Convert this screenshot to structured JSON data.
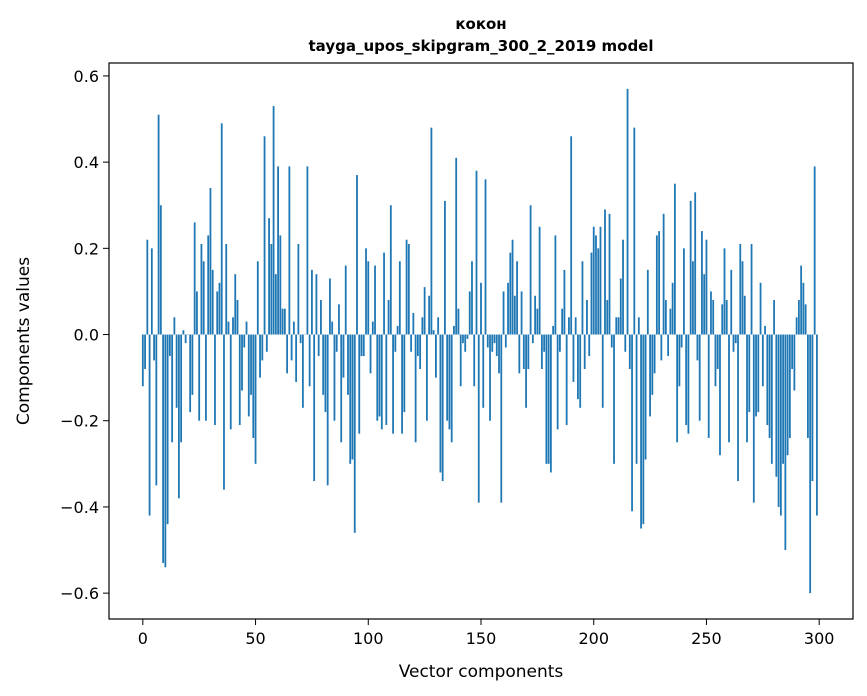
{
  "chart_data": {
    "type": "bar",
    "title_line1": "кокон",
    "title_line2": "tayga_upos_skipgram_300_2_2019 model",
    "xlabel": "Vector components",
    "ylabel": "Components values",
    "xlim": [
      -15,
      315
    ],
    "ylim": [
      -0.66,
      0.63
    ],
    "xticks": [
      0,
      50,
      100,
      150,
      200,
      250,
      300
    ],
    "xtick_labels": [
      "0",
      "50",
      "100",
      "150",
      "200",
      "250",
      "300"
    ],
    "yticks": [
      -0.6,
      -0.4,
      -0.2,
      0.0,
      0.2,
      0.4,
      0.6
    ],
    "ytick_labels": [
      "−0.6",
      "−0.4",
      "−0.2",
      "0.0",
      "0.2",
      "0.4",
      "0.6"
    ],
    "bar_color": "#1f77b4",
    "grid": false,
    "values": [
      -0.12,
      -0.08,
      0.22,
      -0.42,
      0.2,
      -0.06,
      -0.35,
      0.51,
      0.3,
      -0.53,
      -0.54,
      -0.44,
      -0.05,
      -0.25,
      0.04,
      -0.17,
      -0.38,
      -0.25,
      0.01,
      -0.02,
      0.0,
      -0.18,
      -0.14,
      0.26,
      0.1,
      -0.2,
      0.21,
      0.17,
      -0.2,
      0.23,
      0.34,
      0.15,
      -0.21,
      0.1,
      0.12,
      0.49,
      -0.36,
      0.21,
      0.03,
      -0.22,
      0.04,
      0.14,
      0.08,
      -0.21,
      -0.13,
      -0.03,
      0.03,
      -0.19,
      -0.14,
      -0.24,
      -0.3,
      0.17,
      -0.1,
      -0.06,
      0.46,
      -0.04,
      0.27,
      0.21,
      0.53,
      0.14,
      0.39,
      0.23,
      0.06,
      0.06,
      -0.09,
      0.39,
      -0.06,
      0.03,
      -0.11,
      0.21,
      -0.02,
      -0.17,
      0.0,
      0.39,
      -0.12,
      0.15,
      -0.34,
      0.14,
      -0.05,
      0.08,
      -0.14,
      -0.18,
      -0.35,
      0.13,
      0.03,
      -0.2,
      -0.04,
      0.07,
      -0.25,
      -0.1,
      0.16,
      -0.14,
      -0.3,
      -0.29,
      -0.46,
      0.37,
      -0.23,
      -0.05,
      -0.05,
      0.2,
      0.17,
      -0.09,
      0.03,
      0.16,
      -0.2,
      -0.19,
      -0.22,
      0.19,
      -0.21,
      0.08,
      0.3,
      -0.23,
      -0.04,
      0.02,
      0.17,
      -0.23,
      -0.18,
      0.22,
      0.21,
      -0.04,
      0.05,
      -0.25,
      -0.05,
      -0.08,
      0.04,
      0.11,
      -0.2,
      0.09,
      0.48,
      0.01,
      -0.1,
      0.04,
      -0.32,
      -0.34,
      0.31,
      -0.2,
      -0.22,
      -0.25,
      0.02,
      0.41,
      0.06,
      -0.12,
      -0.02,
      -0.04,
      -0.01,
      0.1,
      0.17,
      -0.12,
      0.38,
      -0.39,
      0.12,
      -0.17,
      0.36,
      -0.03,
      -0.2,
      -0.04,
      -0.02,
      -0.05,
      -0.09,
      -0.39,
      0.1,
      -0.03,
      0.12,
      0.19,
      0.22,
      0.09,
      0.17,
      -0.09,
      0.1,
      -0.08,
      -0.17,
      -0.08,
      0.3,
      -0.02,
      0.09,
      0.06,
      0.25,
      -0.08,
      -0.04,
      -0.3,
      -0.3,
      -0.32,
      0.02,
      0.23,
      -0.22,
      -0.04,
      0.06,
      0.15,
      -0.21,
      0.04,
      0.46,
      -0.11,
      0.04,
      -0.15,
      -0.17,
      0.17,
      -0.08,
      0.08,
      -0.05,
      0.19,
      0.25,
      0.23,
      0.2,
      0.25,
      -0.17,
      0.29,
      0.08,
      0.28,
      -0.03,
      -0.3,
      0.04,
      0.04,
      0.13,
      0.22,
      -0.04,
      0.57,
      -0.08,
      -0.41,
      0.48,
      -0.3,
      0.04,
      -0.45,
      -0.44,
      -0.29,
      0.15,
      -0.19,
      -0.14,
      -0.09,
      0.23,
      0.24,
      -0.06,
      0.28,
      0.08,
      -0.05,
      0.06,
      0.12,
      0.35,
      -0.25,
      -0.12,
      -0.03,
      0.2,
      -0.21,
      -0.23,
      0.31,
      0.17,
      0.33,
      -0.06,
      -0.2,
      0.24,
      0.14,
      0.22,
      -0.24,
      0.1,
      0.08,
      -0.12,
      -0.08,
      -0.28,
      0.07,
      0.2,
      0.08,
      -0.25,
      0.15,
      -0.04,
      -0.02,
      -0.34,
      0.21,
      0.17,
      0.09,
      -0.25,
      -0.18,
      0.21,
      -0.39,
      -0.19,
      -0.18,
      0.12,
      -0.12,
      0.02,
      -0.21,
      -0.24,
      -0.3,
      0.08,
      -0.33,
      -0.4,
      -0.42,
      -0.3,
      -0.5,
      -0.28,
      -0.24,
      -0.08,
      -0.13,
      0.04,
      0.08,
      0.16,
      0.12,
      0.07,
      -0.24,
      -0.6,
      -0.34,
      0.39,
      -0.42
    ]
  }
}
